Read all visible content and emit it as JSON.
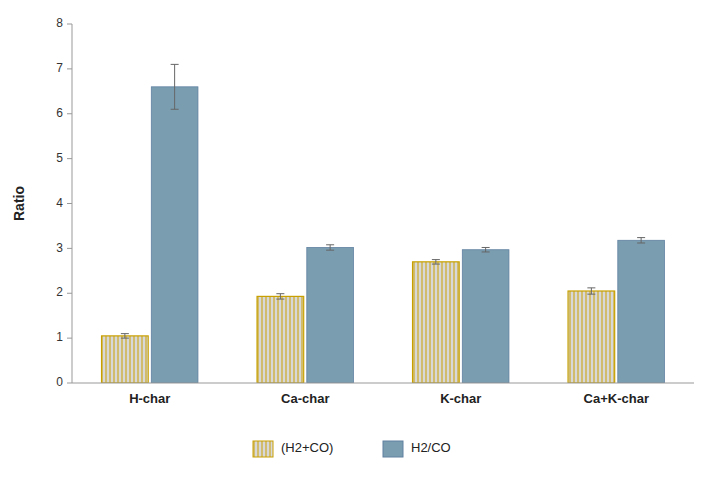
{
  "chart_data": {
    "type": "bar",
    "y_label": "Ratio",
    "categories": [
      "H-char",
      "Ca-char",
      "K-char",
      "Ca+K-char"
    ],
    "series": [
      {
        "name": "(H2+CO)",
        "color": "#d8d8d8",
        "values": [
          1.05,
          1.93,
          2.7,
          2.05
        ],
        "errors": [
          0.05,
          0.06,
          0.05,
          0.07
        ]
      },
      {
        "name": "H2/CO",
        "color": "#7a9db0",
        "values": [
          6.6,
          3.02,
          2.97,
          3.18
        ],
        "errors": [
          0.5,
          0.06,
          0.05,
          0.06
        ]
      }
    ],
    "ylim": [
      0,
      8
    ],
    "yticks": [
      0,
      1,
      2,
      3,
      4,
      5,
      6,
      7,
      8
    ],
    "grid": false,
    "legend": "bottom"
  }
}
